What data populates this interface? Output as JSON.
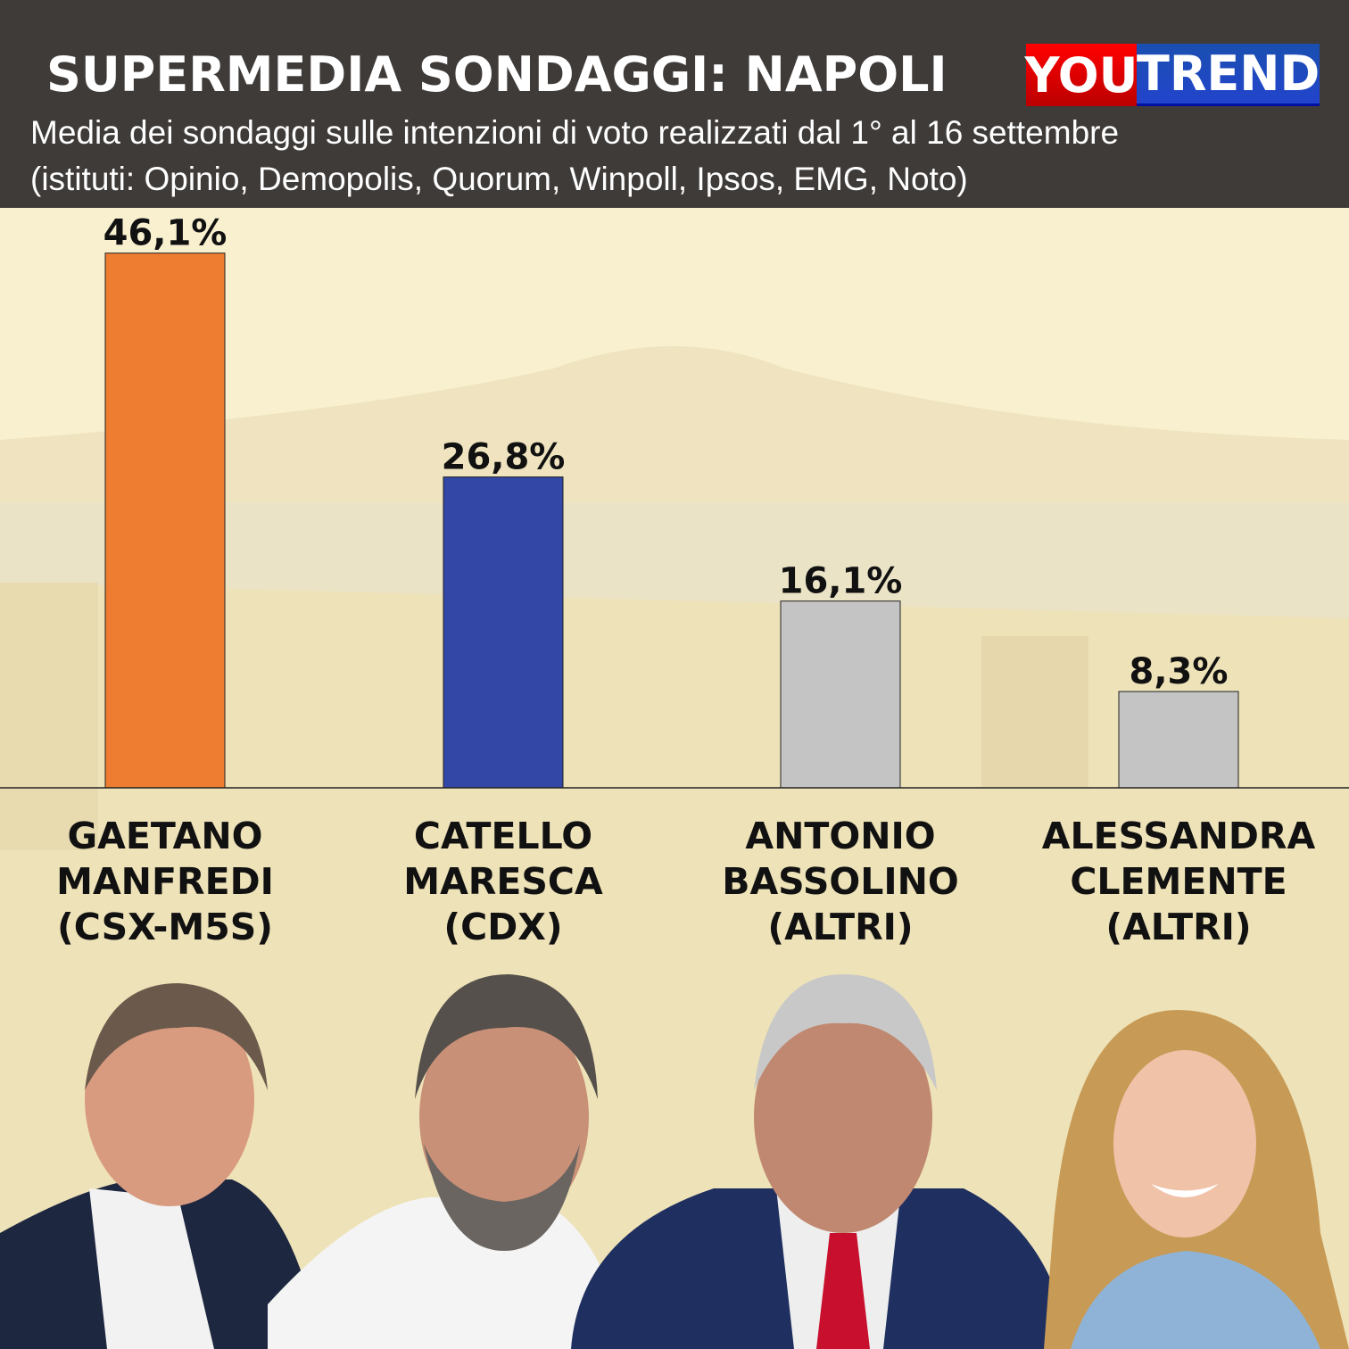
{
  "header": {
    "title": "SUPERMEDIA SONDAGGI: NAPOLI",
    "subtitle_line1": "Media dei sondaggi sulle intenzioni di voto realizzati dal 1° al 16 settembre",
    "subtitle_line2": "(istituti: Opinio, Demopolis, Quorum, Winpoll, Ipsos, EMG, Noto)",
    "logo": {
      "part1": "YOU",
      "part2": "TREND"
    }
  },
  "chart_data": {
    "type": "bar",
    "title": "SUPERMEDIA SONDAGGI: NAPOLI",
    "categories": [
      "GAETANO MANFREDI (CSX-M5S)",
      "CATELLO MARESCA (CDX)",
      "ANTONIO BASSOLINO (ALTRI)",
      "ALESSANDRA CLEMENTE (ALTRI)"
    ],
    "category_lines": [
      "GAETANO\nMANFREDI\n(CSX-M5S)",
      "CATELLO\nMARESCA\n(CDX)",
      "ANTONIO\nBASSOLINO\n(ALTRI)",
      "ALESSANDRA\nCLEMENTE\n(ALTRI)"
    ],
    "values": [
      46.1,
      26.8,
      16.1,
      8.3
    ],
    "data_labels": [
      "46,1%",
      "26,8%",
      "16,1%",
      "8,3%"
    ],
    "colors": [
      "#ee7d31",
      "#3347a6",
      "#c4c4c4",
      "#c4c4c4"
    ],
    "ylim": [
      0,
      50
    ],
    "grid": false,
    "xlabel": "",
    "ylabel": ""
  }
}
